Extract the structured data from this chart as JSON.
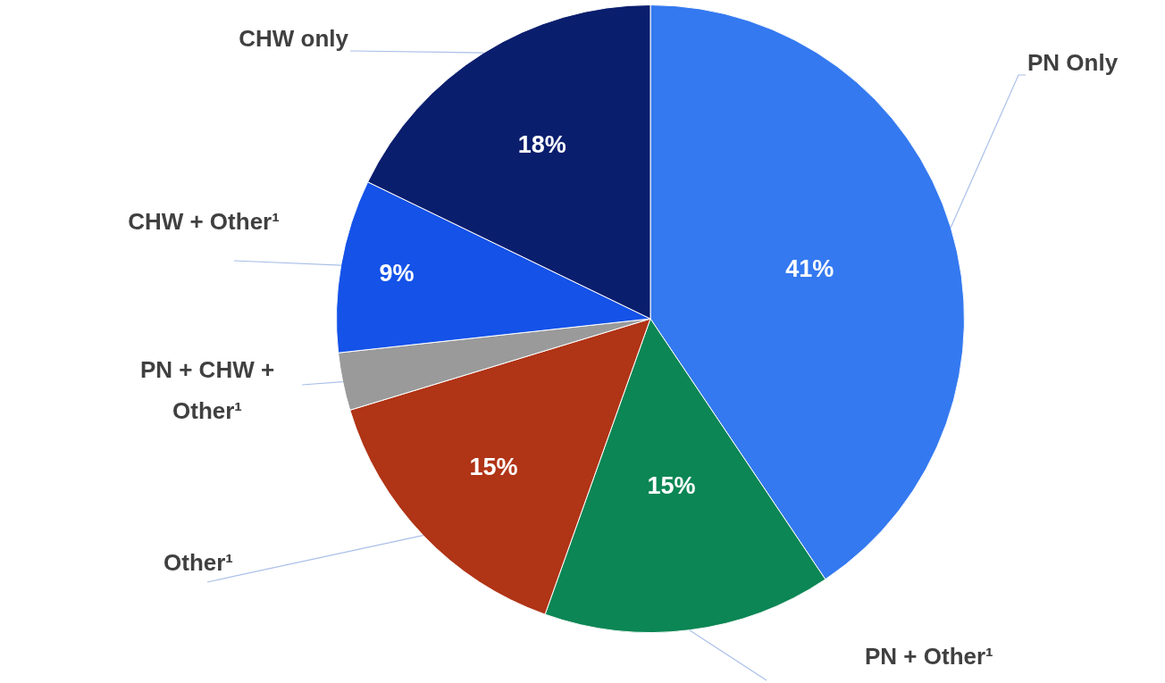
{
  "chart_data": {
    "type": "pie",
    "categories": [
      "PN Only",
      "PN + Other¹",
      "Other¹",
      "PN + CHW + Other¹",
      "CHW + Other¹",
      "CHW only"
    ],
    "values": [
      41,
      15,
      15,
      3,
      9,
      18
    ],
    "colors": [
      "#3479f0",
      "#0b8654",
      "#b03416",
      "#9a9a9a",
      "#1452e8",
      "#0a1e6e"
    ],
    "value_labels": [
      "41%",
      "15%",
      "15%",
      null,
      "9%",
      "18%"
    ]
  }
}
